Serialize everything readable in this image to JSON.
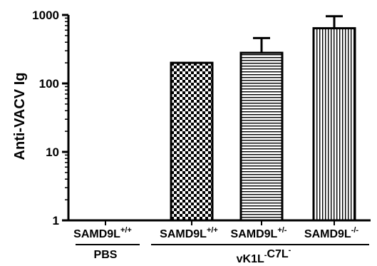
{
  "chart_data": {
    "type": "bar",
    "ylabel": "Anti-VACV Ig",
    "yscale": "log",
    "ylim": [
      1,
      1000
    ],
    "y_ticks": [
      "1",
      "10",
      "100",
      "1000"
    ],
    "categories": [
      {
        "base": "SAMD9L",
        "sup": "+/+"
      },
      {
        "base": "SAMD9L",
        "sup": "+/+"
      },
      {
        "base": "SAMD9L",
        "sup": "+/-"
      },
      {
        "base": "SAMD9L",
        "sup": "-/-"
      }
    ],
    "values": [
      null,
      200,
      280,
      640
    ],
    "error_upper": [
      null,
      null,
      460,
      960
    ],
    "patterns": [
      "none",
      "checkerboard",
      "horizontal-lines",
      "vertical-lines"
    ],
    "groups": [
      {
        "label": "PBS",
        "categories": [
          0
        ]
      },
      {
        "label": "vK1L-C7L-",
        "parts": [
          {
            "text": "vK1L",
            "sup": "-"
          },
          {
            "text": "C7L",
            "sup": "-"
          }
        ],
        "categories": [
          1,
          2,
          3
        ]
      }
    ],
    "grid": false
  }
}
